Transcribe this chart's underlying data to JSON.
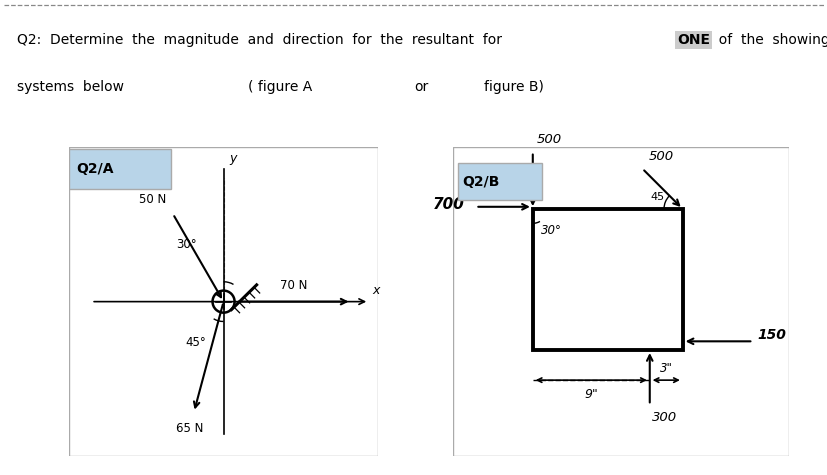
{
  "bg_color": "#ffffff",
  "panel_header_bg": "#b8d4e8",
  "panel_a_label": "Q2/A",
  "panel_b_label": "Q2/B",
  "title_part1": "Q2:  Determine  the  magnitude  and  direction  for  the  resultant  for  ",
  "title_one": "ONE",
  "title_part2": "  of  the  showing",
  "title_line2a": "systems  below",
  "title_line2b": "( figure A",
  "title_line2c": "or",
  "title_line2d": "figure B)",
  "figA_50N_label": "50 N",
  "figA_70N_label": "70 N",
  "figA_65N_label": "65 N",
  "figA_30deg": "30°",
  "figA_45deg": "45°",
  "figA_x_label": "x",
  "figA_y_label": "y",
  "figB_500_label": "500",
  "figB_700_label": "700",
  "figB_150_label": "150",
  "figB_300_label": "300",
  "figB_45_label": "45",
  "figB_30deg": "30°",
  "figB_dim9": "9\"",
  "figB_dim3": "3\""
}
